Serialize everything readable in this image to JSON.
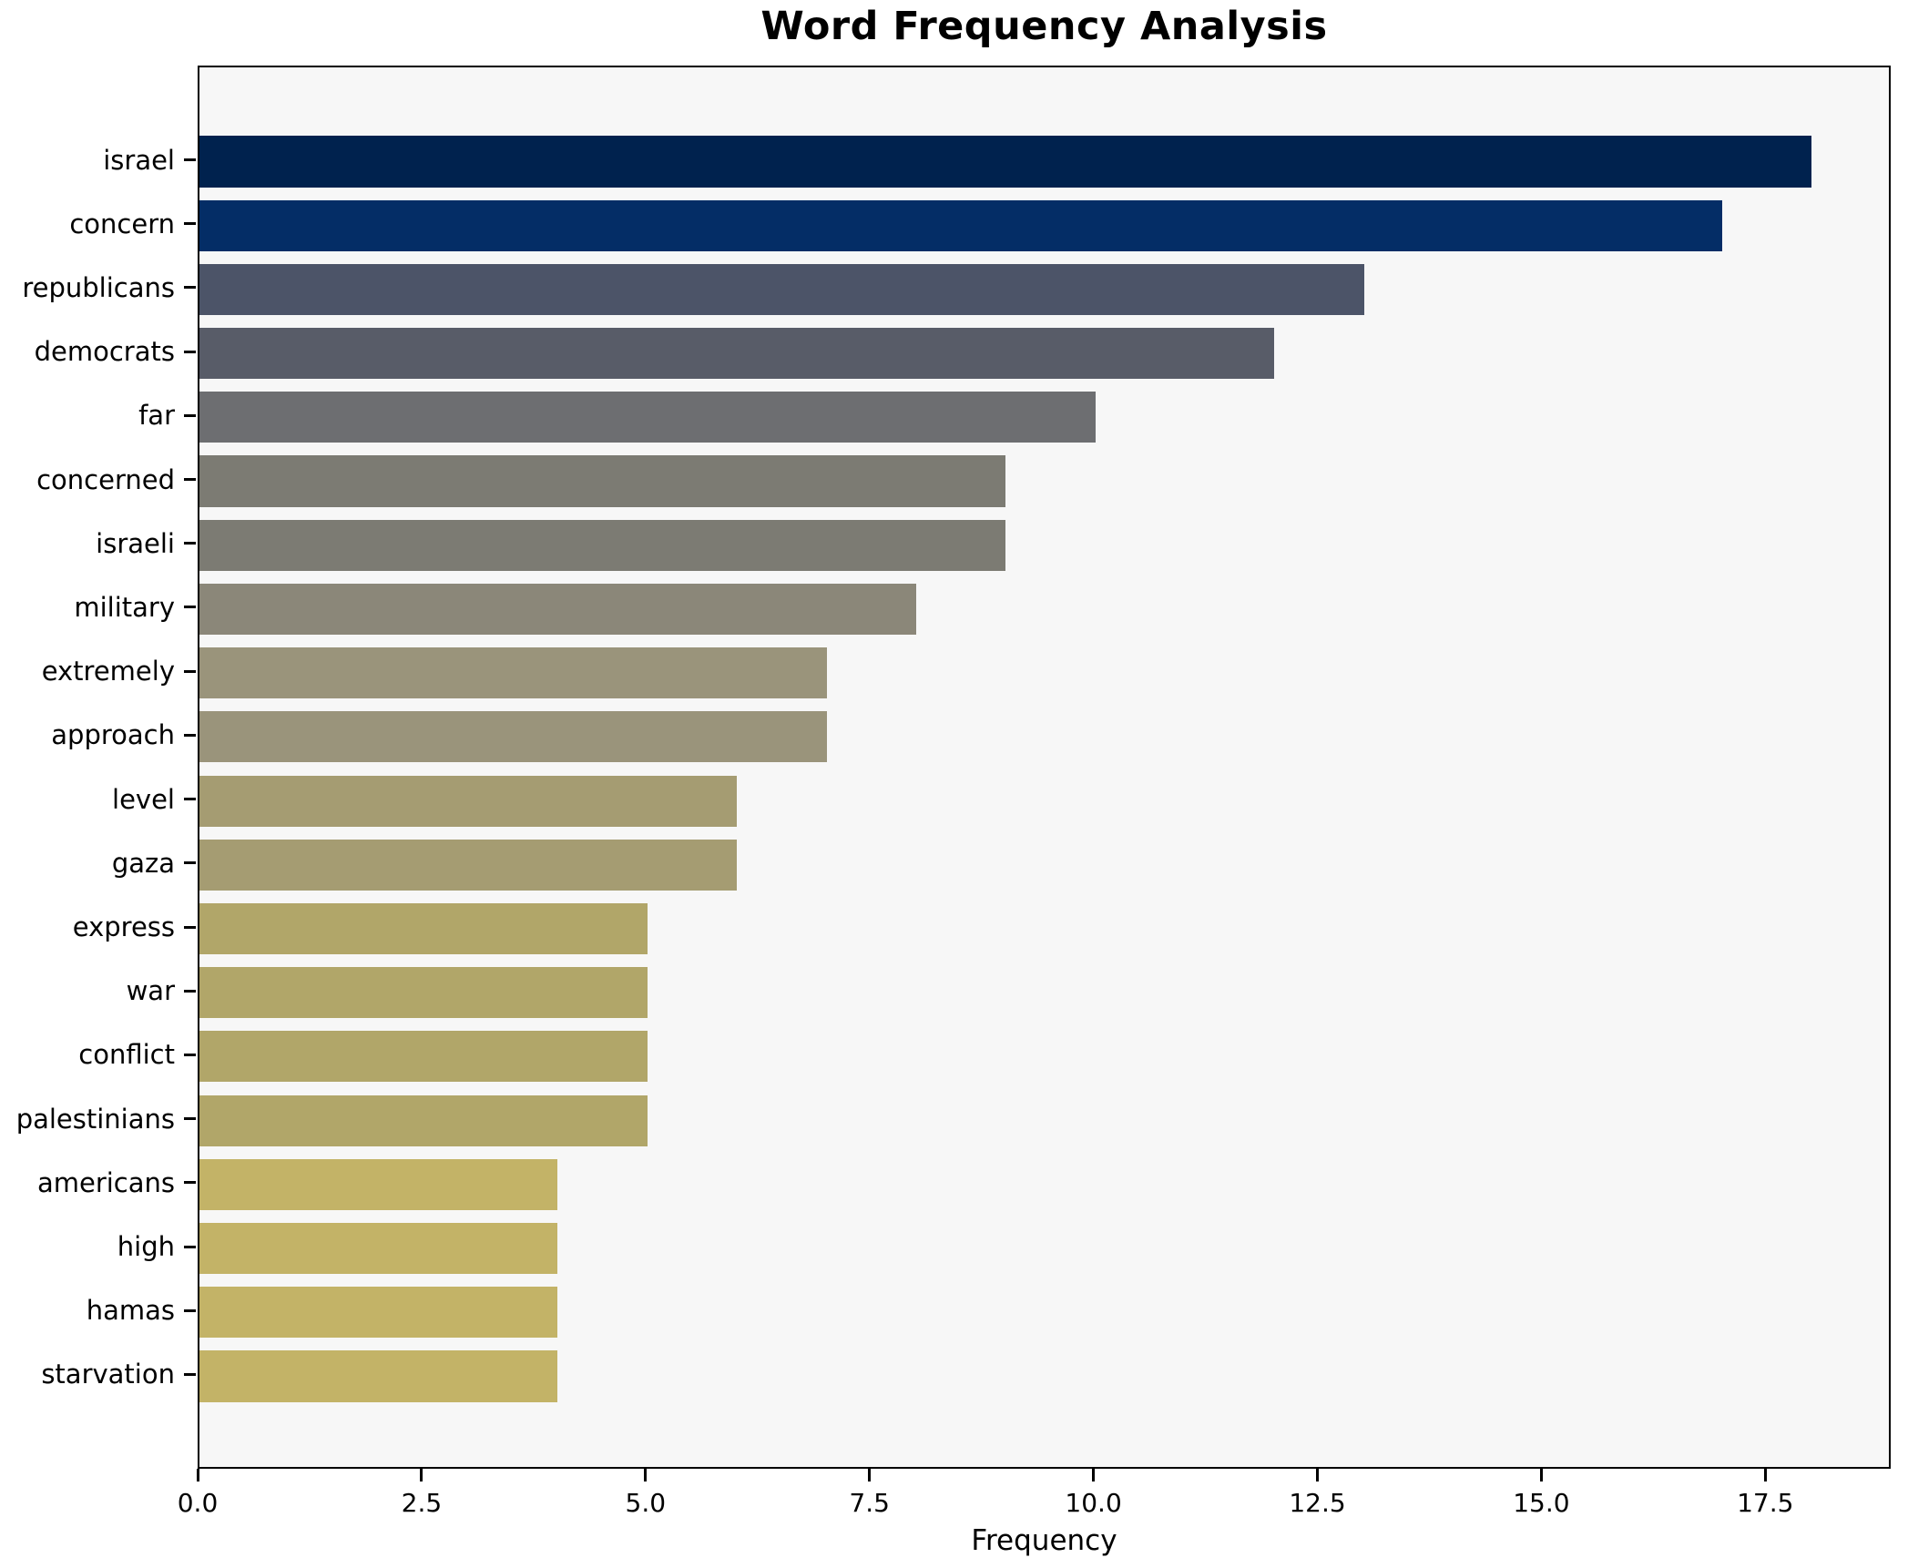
{
  "chart_data": {
    "type": "bar",
    "orientation": "horizontal",
    "title": "Word Frequency Analysis",
    "xlabel": "Frequency",
    "ylabel": "",
    "categories": [
      "israel",
      "concern",
      "republicans",
      "democrats",
      "far",
      "concerned",
      "israeli",
      "military",
      "extremely",
      "approach",
      "level",
      "gaza",
      "express",
      "war",
      "conflict",
      "palestinians",
      "americans",
      "high",
      "hamas",
      "starvation"
    ],
    "values": [
      18,
      17,
      13,
      12,
      10,
      9,
      9,
      8,
      7,
      7,
      6,
      6,
      5,
      5,
      5,
      5,
      4,
      4,
      4,
      4
    ],
    "bar_colors": [
      "#00224e",
      "#042d66",
      "#4c5468",
      "#585c68",
      "#6d6e71",
      "#7c7b73",
      "#7c7b73",
      "#8b8779",
      "#9a947b",
      "#9a947b",
      "#a59c72",
      "#a59c72",
      "#b1a669",
      "#b1a669",
      "#b1a669",
      "#b1a669",
      "#c3b367",
      "#c3b367",
      "#c3b367",
      "#c3b367"
    ],
    "xlim": [
      0,
      18.9
    ],
    "x_ticks": [
      0.0,
      2.5,
      5.0,
      7.5,
      10.0,
      12.5,
      15.0,
      17.5
    ],
    "x_tick_labels": [
      "0.0",
      "2.5",
      "5.0",
      "7.5",
      "10.0",
      "12.5",
      "15.0",
      "17.5"
    ],
    "grid": false,
    "legend": false,
    "plot_background": "#f7f7f7",
    "figure_background": "#ffffff",
    "bar_height_fraction": 0.8
  }
}
